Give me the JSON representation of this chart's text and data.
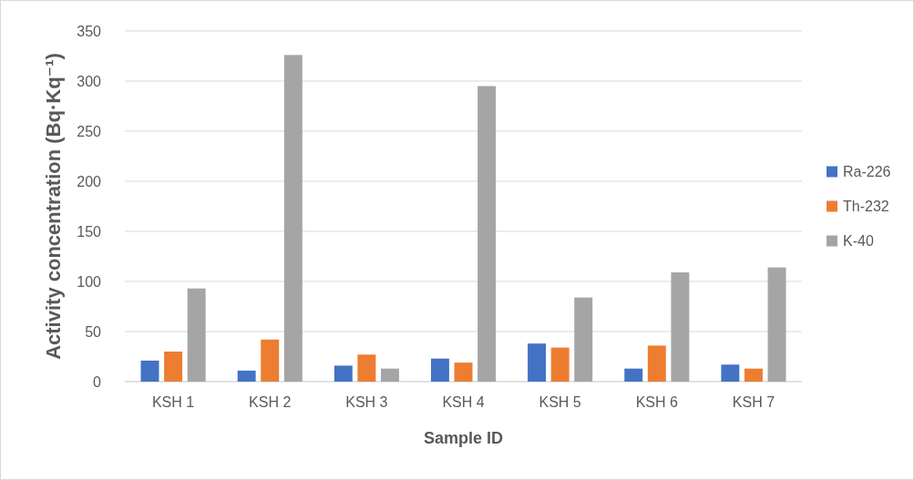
{
  "chart_data": {
    "type": "bar",
    "xlabel": "Sample ID",
    "ylabel": "Activity concentration (Bq·Kq⁻¹)",
    "categories": [
      "KSH 1",
      "KSH 2",
      "KSH 3",
      "KSH 4",
      "KSH 5",
      "KSH 6",
      "KSH 7"
    ],
    "series": [
      {
        "name": "Ra-226",
        "color": "#4472c4",
        "values": [
          21,
          11,
          16,
          23,
          38,
          13,
          17
        ]
      },
      {
        "name": "Th-232",
        "color": "#ed7d31",
        "values": [
          30,
          42,
          27,
          19,
          34,
          36,
          13
        ]
      },
      {
        "name": "K-40",
        "color": "#a5a5a5",
        "values": [
          93,
          326,
          13,
          295,
          84,
          109,
          114
        ]
      }
    ],
    "ylim": [
      0,
      350
    ],
    "yticks": [
      0,
      50,
      100,
      150,
      200,
      250,
      300,
      350
    ],
    "grid": "y",
    "legend": "right"
  }
}
